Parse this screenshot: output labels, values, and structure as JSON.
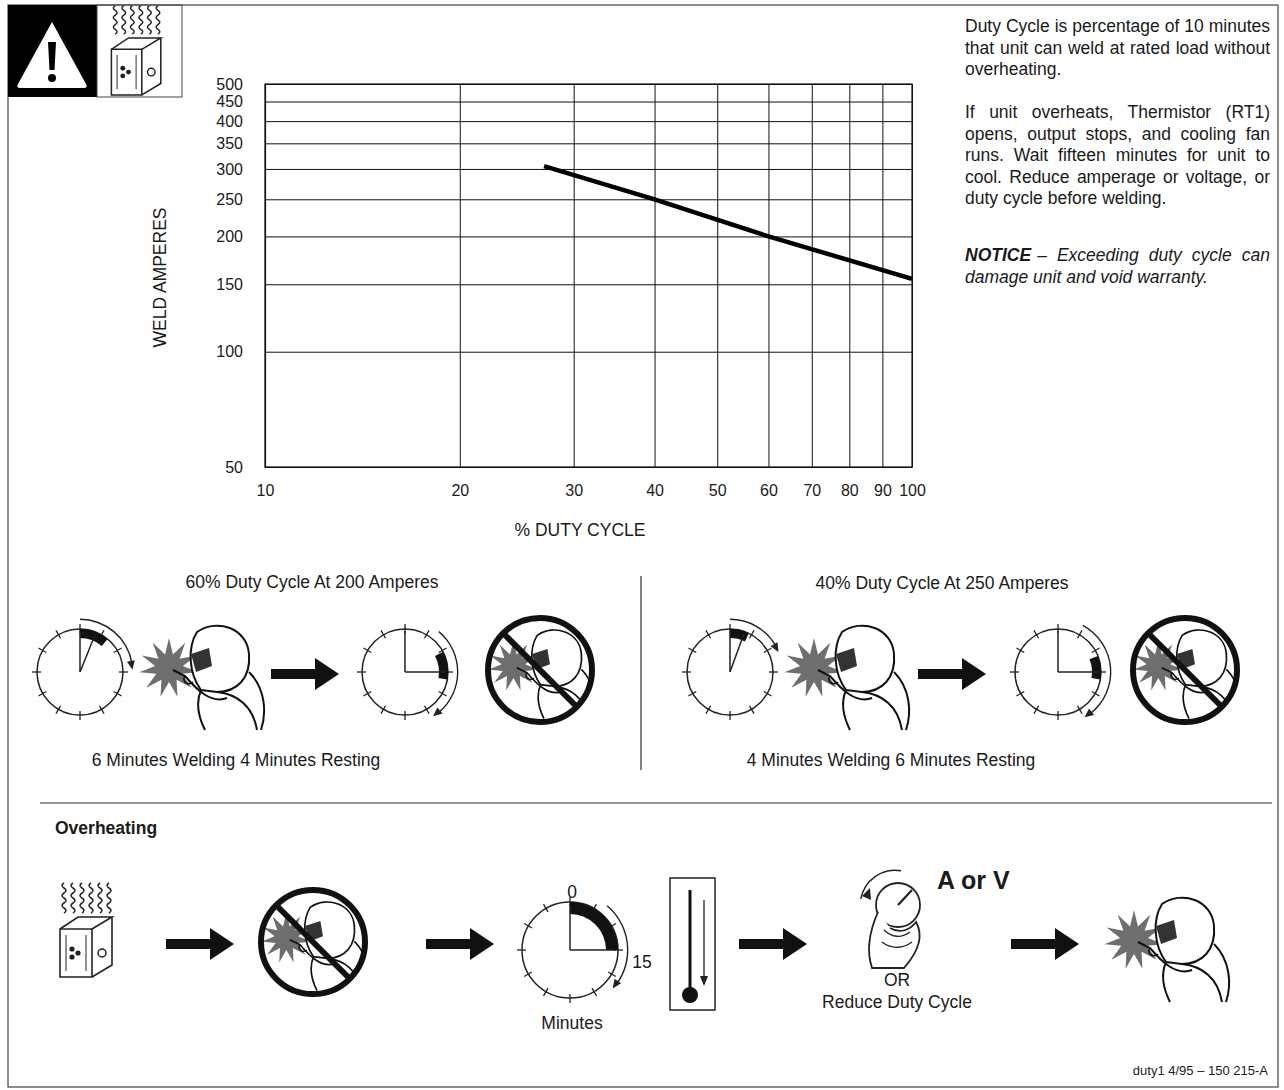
{
  "chart_data": {
    "type": "line",
    "x_label": "% DUTY CYCLE",
    "y_label": "WELD AMPERES",
    "x": [
      27,
      40,
      60,
      100
    ],
    "values": [
      305,
      250,
      200,
      155
    ],
    "color": "#000000",
    "xlim": [
      10,
      100
    ],
    "ylim": [
      50,
      500
    ],
    "xticks": [
      10,
      20,
      30,
      40,
      50,
      60,
      70,
      80,
      90,
      100
    ],
    "yticks": [
      50,
      100,
      150,
      200,
      250,
      300,
      350,
      400,
      450,
      500
    ],
    "log": true,
    "grid": true
  },
  "notes": {
    "duty_cycle": "Duty Cycle is percentage of 10 minutes that unit can weld at rated load without overheating.",
    "overheat": "If unit overheats, Thermistor (RT1) opens, output stops, and cooling fan runs. Wait fifteen minutes for unit to cool. Reduce amperage or voltage, or duty cycle before welding.",
    "notice_label": "NOTICE",
    "notice": "– Exceeding duty cycle can damage unit and void warranty."
  },
  "examples": [
    {
      "title": "60% Duty Cycle At 200 Amperes",
      "caption": "6 Minutes Welding 4 Minutes Resting"
    },
    {
      "title": "40% Duty Cycle At 250 Amperes",
      "caption": "4 Minutes Welding 6 Minutes Resting"
    }
  ],
  "overheating": {
    "title": "Overheating",
    "clock_start": 0,
    "clock_end": 15,
    "clock_unit": "Minutes",
    "control": "A or V",
    "or": "OR",
    "alternative": "Reduce Duty Cycle"
  },
  "footer": "duty1 4/95 – 150 215-A"
}
